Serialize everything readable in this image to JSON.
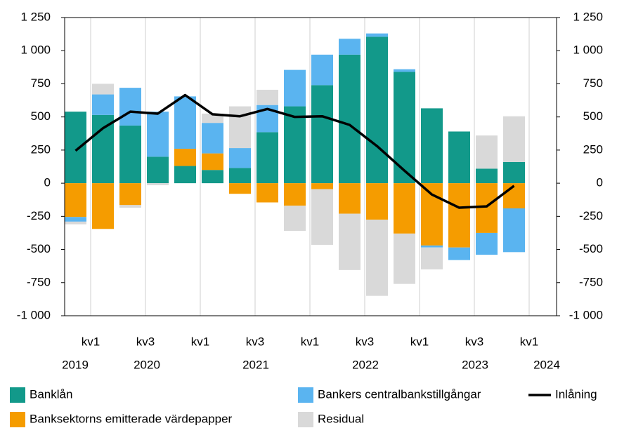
{
  "chart_data": {
    "type": "bar",
    "stacked": true,
    "categories": [
      "kv1",
      null,
      "kv3",
      null,
      "kv1",
      null,
      "kv3",
      null,
      "kv1",
      null,
      "kv3",
      null,
      "kv1",
      null,
      "kv3",
      null,
      "kv1"
    ],
    "years": [
      "2019",
      "2020",
      "2021",
      "2022",
      "2023",
      "2024"
    ],
    "series": [
      {
        "name": "Banklån",
        "color": "#12998a",
        "values": [
          540,
          515,
          435,
          200,
          130,
          100,
          115,
          385,
          580,
          740,
          970,
          1105,
          840,
          565,
          390,
          110,
          160
        ]
      },
      {
        "name": "Banksektorns emitterade värdepapper",
        "color": "#f59c00",
        "values": [
          -255,
          -345,
          -165,
          0,
          130,
          125,
          -80,
          -145,
          -170,
          -45,
          -230,
          -275,
          -380,
          -470,
          -485,
          -375,
          -190
        ]
      },
      {
        "name": "Bankers centralbankstillgångar",
        "color": "#5ab4f0",
        "values": [
          -35,
          155,
          285,
          340,
          395,
          230,
          150,
          205,
          275,
          230,
          120,
          25,
          20,
          -15,
          -95,
          -165,
          -330
        ]
      },
      {
        "name": "Residual",
        "color": "#d9d9d9",
        "values": [
          -20,
          80,
          -20,
          -15,
          0,
          70,
          315,
          115,
          -190,
          -420,
          -425,
          -575,
          -380,
          -165,
          0,
          250,
          345
        ]
      },
      {
        "name": "Inlåning",
        "type": "line",
        "color": "#000000",
        "values": [
          245,
          415,
          540,
          525,
          665,
          520,
          505,
          560,
          500,
          505,
          440,
          280,
          95,
          -85,
          -185,
          -175,
          -20
        ]
      }
    ],
    "ylim": [
      -1000,
      1250
    ],
    "yticks": [
      {
        "value": -1000,
        "label": "-1 000"
      },
      -750,
      -500,
      -250,
      0,
      250,
      500,
      750,
      {
        "value": 1000,
        "label": "1 000"
      },
      {
        "value": 1250,
        "label": "1 250"
      }
    ],
    "y2lim": [
      -1000,
      1250
    ],
    "y2ticks": [
      {
        "value": -1000,
        "label": "-1 000"
      },
      -750,
      -500,
      -250,
      0,
      250,
      500,
      750,
      {
        "value": 1000,
        "label": "1 000"
      },
      {
        "value": 1250,
        "label": "1 250"
      }
    ],
    "legend": "bottom"
  }
}
